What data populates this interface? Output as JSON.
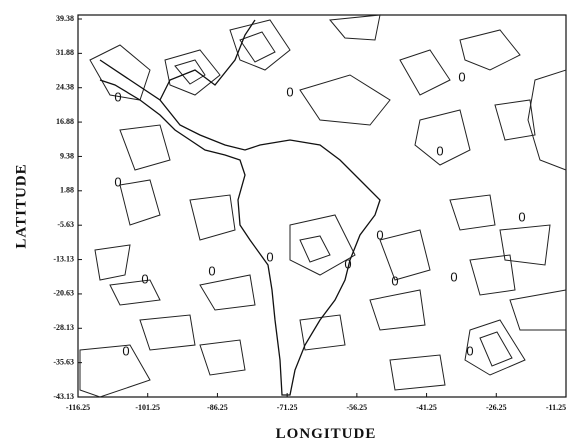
{
  "chart_data": {
    "type": "contour",
    "xlabel": "LONGITUDE",
    "ylabel": "LATITUDE",
    "xlim": [
      -116.25,
      -11.25
    ],
    "ylim": [
      -43.13,
      39.38
    ],
    "xticks": [
      -116.25,
      -101.25,
      -86.25,
      -71.25,
      -56.25,
      -41.25,
      -26.25,
      -11.25
    ],
    "yticks": [
      39.38,
      31.88,
      24.38,
      16.88,
      9.38,
      1.88,
      -5.63,
      -13.13,
      -20.63,
      -28.13,
      -35.63,
      -43.13
    ],
    "contour_labels": [
      "0",
      "0",
      "0",
      "0",
      "0",
      "0",
      "0",
      "0",
      "0",
      "0",
      "0",
      "0",
      "0",
      "0",
      "0"
    ]
  }
}
